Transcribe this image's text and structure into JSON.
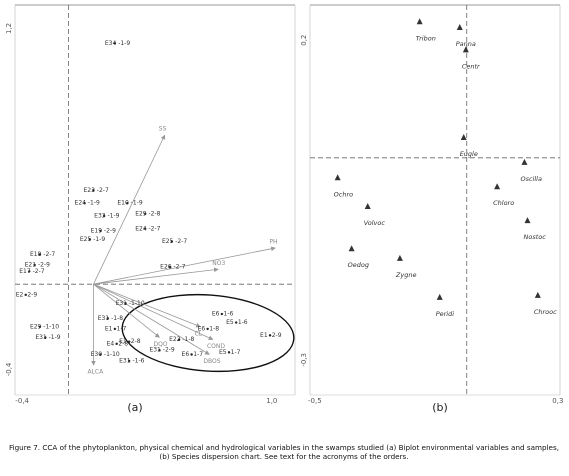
{
  "caption": "Figure 7. CCA of the phytoplankton, physical chemical and hydrological variables in the swamps studied (a) Biplot environmental variables and samples, (b) Species dispersion chart. See text for the acronyms of the orders.",
  "chart_data": [
    {
      "type": "biplot",
      "panel": "(a)",
      "xlim": [
        -0.44,
        1.13
      ],
      "ylim": [
        -0.52,
        1.31
      ],
      "xticks": [
        {
          "value": -0.4,
          "label": "-0,4"
        },
        {
          "value": 1.0,
          "label": "1,0"
        }
      ],
      "yticks": [
        {
          "value": 1.2,
          "label": "1,2"
        },
        {
          "value": -0.4,
          "label": "-0,4"
        }
      ],
      "reference_lines": {
        "x": -0.14,
        "y": 0
      },
      "color": "#222222",
      "labels": [
        "E34 -1-9",
        "E23 -2-7",
        "E24 -1-9",
        "E10 -1-9",
        "E33 -1-9",
        "E29 -2-8",
        "E19 -2-9",
        "E24 -2-7",
        "E25 -2-7",
        "E25 -1-9",
        "E18 -2-7",
        "E21 -2-9",
        "E17 -2-7",
        "E26 -2-7",
        "E2 -2-9",
        "E29 -1-10",
        "E31 -1-9",
        "E30 -1-10",
        "E31 -1-6",
        "E31 -1-8",
        "E1 -1-7",
        "E4 -2-8",
        "E31 -2-9",
        "E6 -1-7",
        "E5 -1-7",
        "E22 -1-8",
        "E6 -1-6",
        "E5 -1-6",
        "E6 -1-8",
        "E1 -2-9",
        "E31 -1-10",
        "E1 -2-8"
      ],
      "x": [
        0.12,
        0.0,
        -0.05,
        0.19,
        0.06,
        0.29,
        0.04,
        0.29,
        0.44,
        -0.02,
        -0.3,
        -0.33,
        -0.36,
        0.43,
        -0.38,
        -0.3,
        -0.27,
        0.04,
        0.2,
        0.08,
        0.12,
        0.13,
        0.37,
        0.55,
        0.76,
        0.48,
        0.72,
        0.8,
        0.64,
        0.99,
        0.18,
        0.2
      ],
      "y": [
        1.13,
        0.44,
        0.38,
        0.38,
        0.32,
        0.33,
        0.25,
        0.26,
        0.2,
        0.21,
        0.14,
        0.09,
        0.06,
        0.08,
        -0.05,
        -0.2,
        -0.25,
        -0.33,
        -0.36,
        -0.16,
        -0.21,
        -0.28,
        -0.31,
        -0.33,
        -0.32,
        -0.26,
        -0.14,
        -0.18,
        -0.21,
        -0.24,
        -0.09,
        -0.27
      ],
      "vectors": {
        "labels": [
          "SS",
          "PH",
          "NO3",
          "COND",
          "DBOS",
          "ALCA",
          "CL",
          "DQO"
        ],
        "x": [
          0.4,
          1.02,
          0.7,
          0.67,
          0.65,
          0.0,
          0.6,
          0.37
        ],
        "y": [
          0.7,
          0.17,
          0.07,
          -0.26,
          -0.33,
          -0.38,
          -0.2,
          -0.25
        ],
        "color": "#999999"
      }
    },
    {
      "type": "triangles",
      "panel": "(b)",
      "xlim": [
        -0.516,
        0.307
      ],
      "ylim": [
        -0.355,
        0.255
      ],
      "xticks": [
        {
          "value": -0.5,
          "label": "-0,5"
        },
        {
          "value": 0.3,
          "label": "0,3"
        }
      ],
      "yticks": [
        {
          "value": 0.2,
          "label": "0,2"
        },
        {
          "value": -0.3,
          "label": "-0,3"
        }
      ],
      "reference_lines": {
        "x": 0,
        "y": 0.016
      },
      "color": "#333333",
      "labels": [
        "Tribon",
        "Panna",
        "Centr",
        "Eugle",
        "Oscilla",
        "Ochro",
        "Chloro",
        "Volvoc",
        "Nostoc",
        "Oedog",
        "Zygne",
        "Peridi",
        "Chrooc"
      ],
      "x": [
        -0.155,
        -0.023,
        -0.003,
        -0.01,
        0.19,
        -0.425,
        0.1,
        -0.326,
        0.2,
        -0.379,
        -0.22,
        -0.089,
        0.234
      ],
      "y": [
        0.228,
        0.219,
        0.184,
        0.047,
        0.008,
        -0.016,
        -0.03,
        -0.061,
        -0.083,
        -0.127,
        -0.142,
        -0.203,
        -0.2
      ]
    }
  ]
}
